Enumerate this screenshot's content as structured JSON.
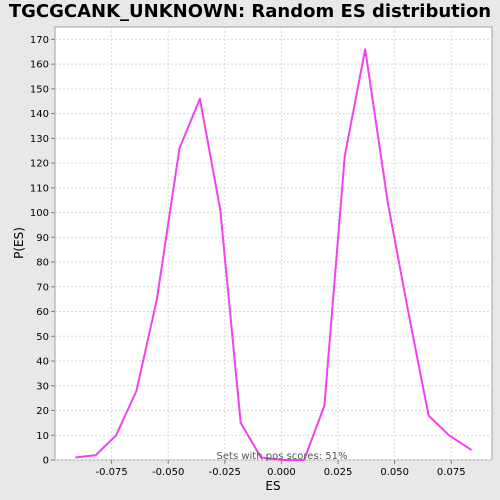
{
  "chart_data": {
    "type": "line",
    "title": "TGCGCANK_UNKNOWN: Random ES distribution",
    "xlabel": "ES",
    "ylabel": "P(ES)",
    "xlim": [
      -0.1,
      0.093
    ],
    "ylim": [
      0,
      175
    ],
    "x_ticks": [
      -0.075,
      -0.05,
      -0.025,
      0.0,
      0.025,
      0.05,
      0.075
    ],
    "x_tick_labels": [
      "-0.075",
      "-0.050",
      "-0.025",
      "0.000",
      "0.025",
      "0.050",
      "0.075"
    ],
    "y_ticks": [
      0,
      10,
      20,
      30,
      40,
      50,
      60,
      70,
      80,
      90,
      100,
      110,
      120,
      130,
      140,
      150,
      160,
      170
    ],
    "y_tick_labels": [
      "0",
      "10",
      "20",
      "30",
      "40",
      "50",
      "60",
      "70",
      "80",
      "90",
      "100",
      "110",
      "120",
      "130",
      "140",
      "150",
      "160",
      "170"
    ],
    "grid": true,
    "series": [
      {
        "color": "#ee44ee",
        "x": [
          -0.091,
          -0.082,
          -0.073,
          -0.064,
          -0.055,
          -0.045,
          -0.036,
          -0.027,
          -0.018,
          -0.009,
          0.0,
          0.01,
          0.019,
          0.028,
          0.037,
          0.047,
          0.056,
          0.065,
          0.074,
          0.084
        ],
        "y": [
          1,
          2,
          10,
          28,
          65,
          126,
          146,
          101,
          15,
          1,
          0,
          0,
          22,
          123,
          166,
          104,
          60,
          18,
          10,
          4
        ]
      }
    ],
    "annotation": "Sets with pos scores: 51%"
  }
}
